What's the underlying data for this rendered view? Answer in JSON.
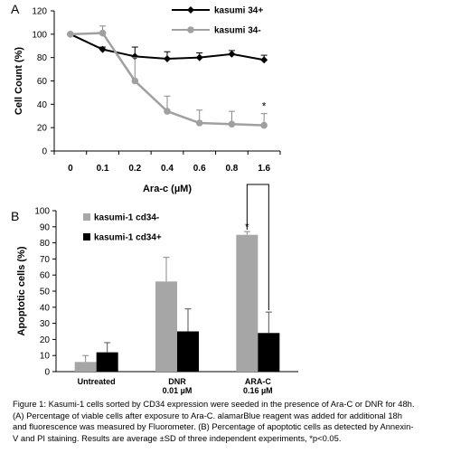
{
  "chart_data": [
    {
      "panel": "A",
      "type": "line",
      "xlabel": "Ara-c (µM)",
      "ylabel": "Cell Count (%)",
      "categories": [
        "0",
        "0.1",
        "0.2",
        "0.4",
        "0.6",
        "0.8",
        "1.6"
      ],
      "ylim": [
        0,
        120
      ],
      "yticks": [
        "0",
        "20",
        "40",
        "60",
        "80",
        "100",
        "120"
      ],
      "series": [
        {
          "name": "kasumi 34+",
          "color": "#000000",
          "marker": "diamond",
          "values": [
            100,
            87,
            81,
            79,
            80,
            83,
            78
          ],
          "errors": [
            0,
            2,
            8,
            6,
            4,
            3,
            4
          ]
        },
        {
          "name": "kasumi 34-",
          "color": "#a0a0a0",
          "marker": "circle",
          "values": [
            100,
            101,
            60,
            34,
            24,
            23,
            22
          ],
          "errors": [
            0,
            6,
            20,
            13,
            11,
            11,
            10
          ]
        }
      ],
      "annotations": [
        {
          "category": "1.6",
          "text": "*"
        }
      ],
      "legend": "top-right"
    },
    {
      "panel": "B",
      "type": "bar",
      "ylabel": "Apoptotic cells (%)",
      "categories": [
        {
          "name": "Untreated",
          "dose": ""
        },
        {
          "name": "DNR",
          "dose": "0.01 µM"
        },
        {
          "name": "ARA-C",
          "dose": "0.16 µM"
        }
      ],
      "ylim": [
        0,
        100
      ],
      "yticks": [
        "0",
        "10",
        "20",
        "30",
        "40",
        "50",
        "60",
        "70",
        "80",
        "90",
        "100"
      ],
      "series": [
        {
          "name": "kasumi-1 cd34-",
          "color": "#a6a6a6",
          "values": [
            6,
            56,
            85
          ],
          "errors": [
            4,
            15,
            2
          ]
        },
        {
          "name": "kasumi-1 cd34+",
          "color": "#000000",
          "values": [
            12,
            25,
            24
          ],
          "errors": [
            6,
            14,
            13
          ]
        }
      ],
      "annotations": [
        {
          "category": "ARA-C",
          "text": "*",
          "bracket": true
        }
      ],
      "legend": "top-left"
    }
  ],
  "caption": {
    "lines": [
      "Figure 1: Kasumi-1 cells sorted by CD34 expression were seeded in the presence of Ara-C or DNR for 48h.",
      "(A) Percentage of viable cells after exposure to Ara-C. alamarBlue reagent was added for additional 18h",
      "and fluorescence was measured by Fluorometer. (B) Percentage of apoptotic cells as detected by Annexin-",
      "V and PI staining. Results are average ±SD of three independent experiments, *p<0.05."
    ]
  }
}
